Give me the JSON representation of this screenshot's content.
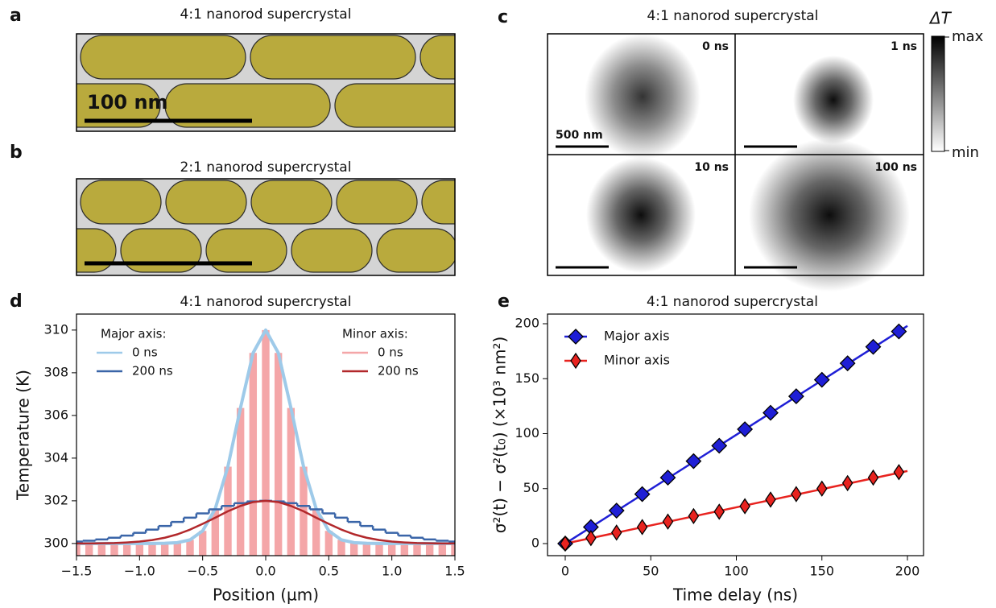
{
  "panels": {
    "a": {
      "label": "a",
      "title": "4:1 nanorod supercrystal",
      "scale_bar": "100 nm"
    },
    "b": {
      "label": "b",
      "title": "2:1 nanorod supercrystal"
    },
    "c": {
      "label": "c",
      "title": "4:1 nanorod supercrystal",
      "frames": [
        "0 ns",
        "1 ns",
        "10 ns",
        "100 ns"
      ],
      "scale_bar": "500 nm",
      "colorbar": {
        "label": "ΔT",
        "max": "max",
        "min": "min"
      }
    },
    "d": {
      "label": "d"
    },
    "e": {
      "label": "e"
    }
  },
  "chart_data": [
    {
      "type": "line",
      "title": "4:1 nanorod supercrystal",
      "x_label": "Position (µm)",
      "y_label": "Temperature (K)",
      "x": [
        -1.5,
        -1.4,
        -1.3,
        -1.2,
        -1.1,
        -1.0,
        -0.9,
        -0.8,
        -0.7,
        -0.6,
        -0.5,
        -0.4,
        -0.3,
        -0.2,
        -0.1,
        0,
        0.1,
        0.2,
        0.3,
        0.4,
        0.5,
        0.6,
        0.7,
        0.8,
        0.9,
        1.0,
        1.1,
        1.2,
        1.3,
        1.4,
        1.5
      ],
      "xlim": [
        -1.5,
        1.5
      ],
      "ylim": [
        299.43,
        310.75
      ],
      "xticks": [
        {
          "value": -1.5,
          "label": "−1.5"
        },
        {
          "value": -1.0,
          "label": "−1.0"
        },
        {
          "value": -0.5,
          "label": "−0.5"
        },
        {
          "value": 0,
          "label": "0.0"
        },
        {
          "value": 0.5,
          "label": "0.5"
        },
        {
          "value": 1.0,
          "label": "1.0"
        },
        {
          "value": 1.5,
          "label": "1.5"
        }
      ],
      "yticks": [
        300,
        302,
        304,
        306,
        308,
        310
      ],
      "series_groups": [
        {
          "title": "Major axis:",
          "legend": "upper left",
          "series": [
            {
              "name": "0 ns",
              "color": "#9ecae9",
              "values": [
                300,
                300,
                300,
                300,
                300,
                300,
                300,
                300.01,
                300.04,
                300.17,
                300.59,
                301.63,
                303.6,
                306.35,
                308.93,
                310,
                308.93,
                306.35,
                303.6,
                301.63,
                300.59,
                300.17,
                300.04,
                300.01,
                300,
                300,
                300,
                300,
                300,
                300,
                300
              ]
            },
            {
              "name": "200 ns",
              "color": "#3a65a8",
              "drawstyle": "steps-mid",
              "values": [
                300.09,
                300.13,
                300.19,
                300.27,
                300.37,
                300.5,
                300.65,
                300.82,
                301.01,
                301.21,
                301.41,
                301.6,
                301.76,
                301.89,
                301.97,
                302,
                301.97,
                301.89,
                301.76,
                301.6,
                301.41,
                301.21,
                301.01,
                300.82,
                300.65,
                300.5,
                300.37,
                300.27,
                300.19,
                300.13,
                300.09
              ]
            }
          ]
        },
        {
          "title": "Minor axis:",
          "legend": "upper right",
          "series": [
            {
              "name": "0 ns",
              "color": "#f4a6a8",
              "drawstyle": "bars",
              "values": [
                300,
                300,
                300,
                300,
                300,
                300,
                300,
                300.01,
                300.04,
                300.17,
                300.59,
                301.63,
                303.6,
                306.35,
                308.93,
                310,
                308.93,
                306.35,
                303.6,
                301.63,
                300.59,
                300.17,
                300.04,
                300.01,
                300,
                300,
                300,
                300,
                300,
                300,
                300
              ]
            },
            {
              "name": "200 ns",
              "color": "#b2282b",
              "values": [
                300,
                300,
                300.01,
                300.02,
                300.05,
                300.09,
                300.16,
                300.27,
                300.43,
                300.65,
                300.92,
                301.21,
                301.51,
                301.76,
                301.94,
                302,
                301.94,
                301.76,
                301.51,
                301.21,
                300.92,
                300.65,
                300.43,
                300.27,
                300.16,
                300.09,
                300.05,
                300.02,
                300.01,
                300,
                300
              ]
            }
          ]
        }
      ]
    },
    {
      "type": "scatter",
      "title": "4:1 nanorod supercrystal",
      "x_label": "Time delay (ns)",
      "y_label": "σ²(t) − σ²(t₀) (×10³ nm²)",
      "x": [
        0,
        15,
        30,
        45,
        60,
        75,
        90,
        105,
        120,
        135,
        150,
        165,
        180,
        195
      ],
      "xlim": [
        -10.35,
        209.4
      ],
      "ylim": [
        -11,
        208.8
      ],
      "xticks": [
        0,
        50,
        100,
        150,
        200
      ],
      "yticks": [
        0,
        50,
        100,
        150,
        200
      ],
      "legend": "upper left",
      "series": [
        {
          "name": "Major axis",
          "color": "#1f1fd6",
          "marker": "diamond",
          "values": [
            0,
            15,
            30,
            45,
            60,
            75,
            89,
            104,
            119,
            134,
            149,
            164,
            179,
            193
          ],
          "fit": {
            "x": [
              0,
              200
            ],
            "values": [
              0,
              198
            ]
          }
        },
        {
          "name": "Minor axis",
          "color": "#e8231f",
          "marker": "thin_diamond",
          "values": [
            0,
            5,
            10,
            15,
            20,
            25,
            29,
            34,
            40,
            45,
            50,
            55,
            60,
            65
          ],
          "fit": {
            "x": [
              0,
              200
            ],
            "values": [
              0,
              66
            ]
          }
        }
      ]
    }
  ]
}
